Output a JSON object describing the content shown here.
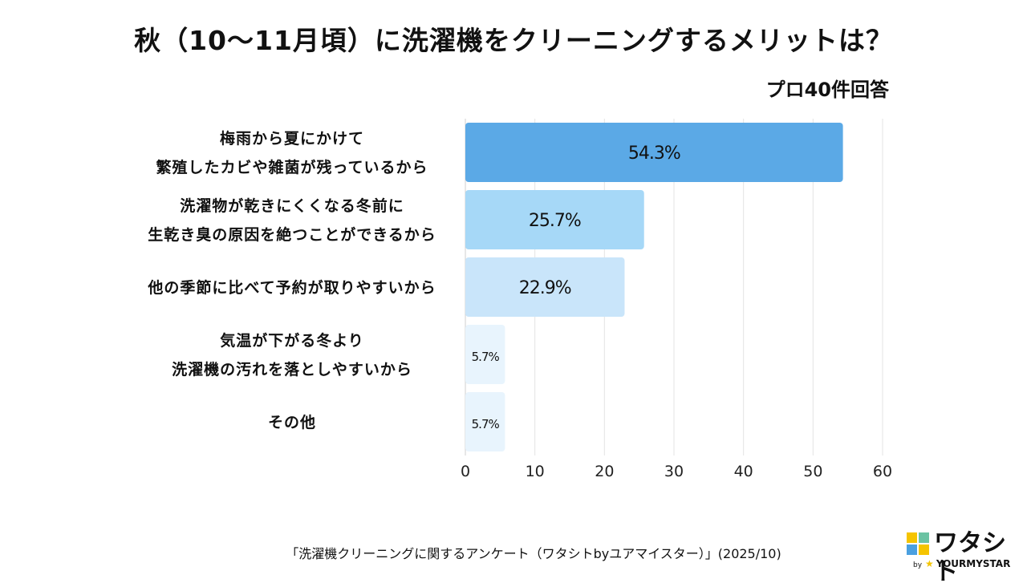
{
  "header": {
    "title": "秋（10〜11月頃）に洗濯機をクリーニングするメリットは？",
    "subtitle": "プロ40件回答"
  },
  "footer": {
    "source": "「洗濯機クリーニングに関するアンケート（ワタシトbyユアマイスター）」(2025/10)"
  },
  "brand": {
    "name": "ワタシト",
    "by": "by",
    "company": "YOURMYSTAR",
    "colors": [
      "#f5c400",
      "#6bc3a3",
      "#4aa0e0",
      "#f5c400"
    ]
  },
  "chart_data": {
    "type": "bar",
    "orientation": "horizontal",
    "categories": [
      [
        "梅雨から夏にかけて",
        "繁殖したカビや雑菌が残っているから"
      ],
      [
        "洗濯物が乾きにくくなる冬前に",
        "生乾き臭の原因を絶つことができるから"
      ],
      [
        "他の季節に比べて予約が取りやすいから"
      ],
      [
        "気温が下がる冬より",
        "洗濯機の汚れを落としやすいから"
      ],
      [
        "その他"
      ]
    ],
    "values": [
      54.3,
      25.7,
      22.9,
      5.7,
      5.7
    ],
    "value_labels": [
      "54.3%",
      "25.7%",
      "22.9%",
      "5.7%",
      "5.7%"
    ],
    "bar_colors": [
      "#5ba9e6",
      "#a6d8f7",
      "#c9e5fa",
      "#e8f4fd",
      "#e8f4fd"
    ],
    "xlim": [
      0,
      60
    ],
    "xticks": [
      0,
      10,
      20,
      30,
      40,
      50,
      60
    ],
    "grid": true
  }
}
